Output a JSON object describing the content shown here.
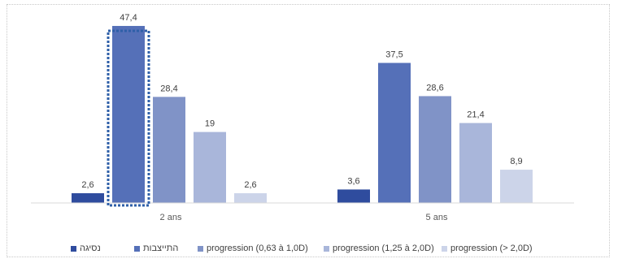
{
  "chart_data": {
    "type": "bar",
    "categories": [
      "2 ans",
      "5 ans"
    ],
    "series": [
      {
        "name": "נסיגה",
        "values": [
          2.6,
          3.6
        ],
        "labels": [
          "2,6",
          "3,6"
        ],
        "color": "#2f4c9e"
      },
      {
        "name": "התייצבות",
        "values": [
          47.4,
          37.5
        ],
        "labels": [
          "47,4",
          "37,5"
        ],
        "color": "#5570b8"
      },
      {
        "name": "progression (0,63 à 1,0D)",
        "values": [
          28.4,
          28.6
        ],
        "labels": [
          "28,4",
          "28,6"
        ],
        "color": "#8093c7"
      },
      {
        "name": "progression (1,25 à 2,0D)",
        "values": [
          19,
          21.4
        ],
        "labels": [
          "19",
          "21,4"
        ],
        "color": "#a9b6da"
      },
      {
        "name": "progression (> 2,0D)",
        "values": [
          2.6,
          8.9
        ],
        "labels": [
          "2,6",
          "8,9"
        ],
        "color": "#ccd4e9"
      }
    ],
    "ylim": [
      0,
      50
    ],
    "grid": false,
    "legend_position": "bottom",
    "highlight": {
      "category": "2 ans",
      "series": "התייצבות",
      "style": "dotted box",
      "color": "#2e5fa8"
    }
  }
}
